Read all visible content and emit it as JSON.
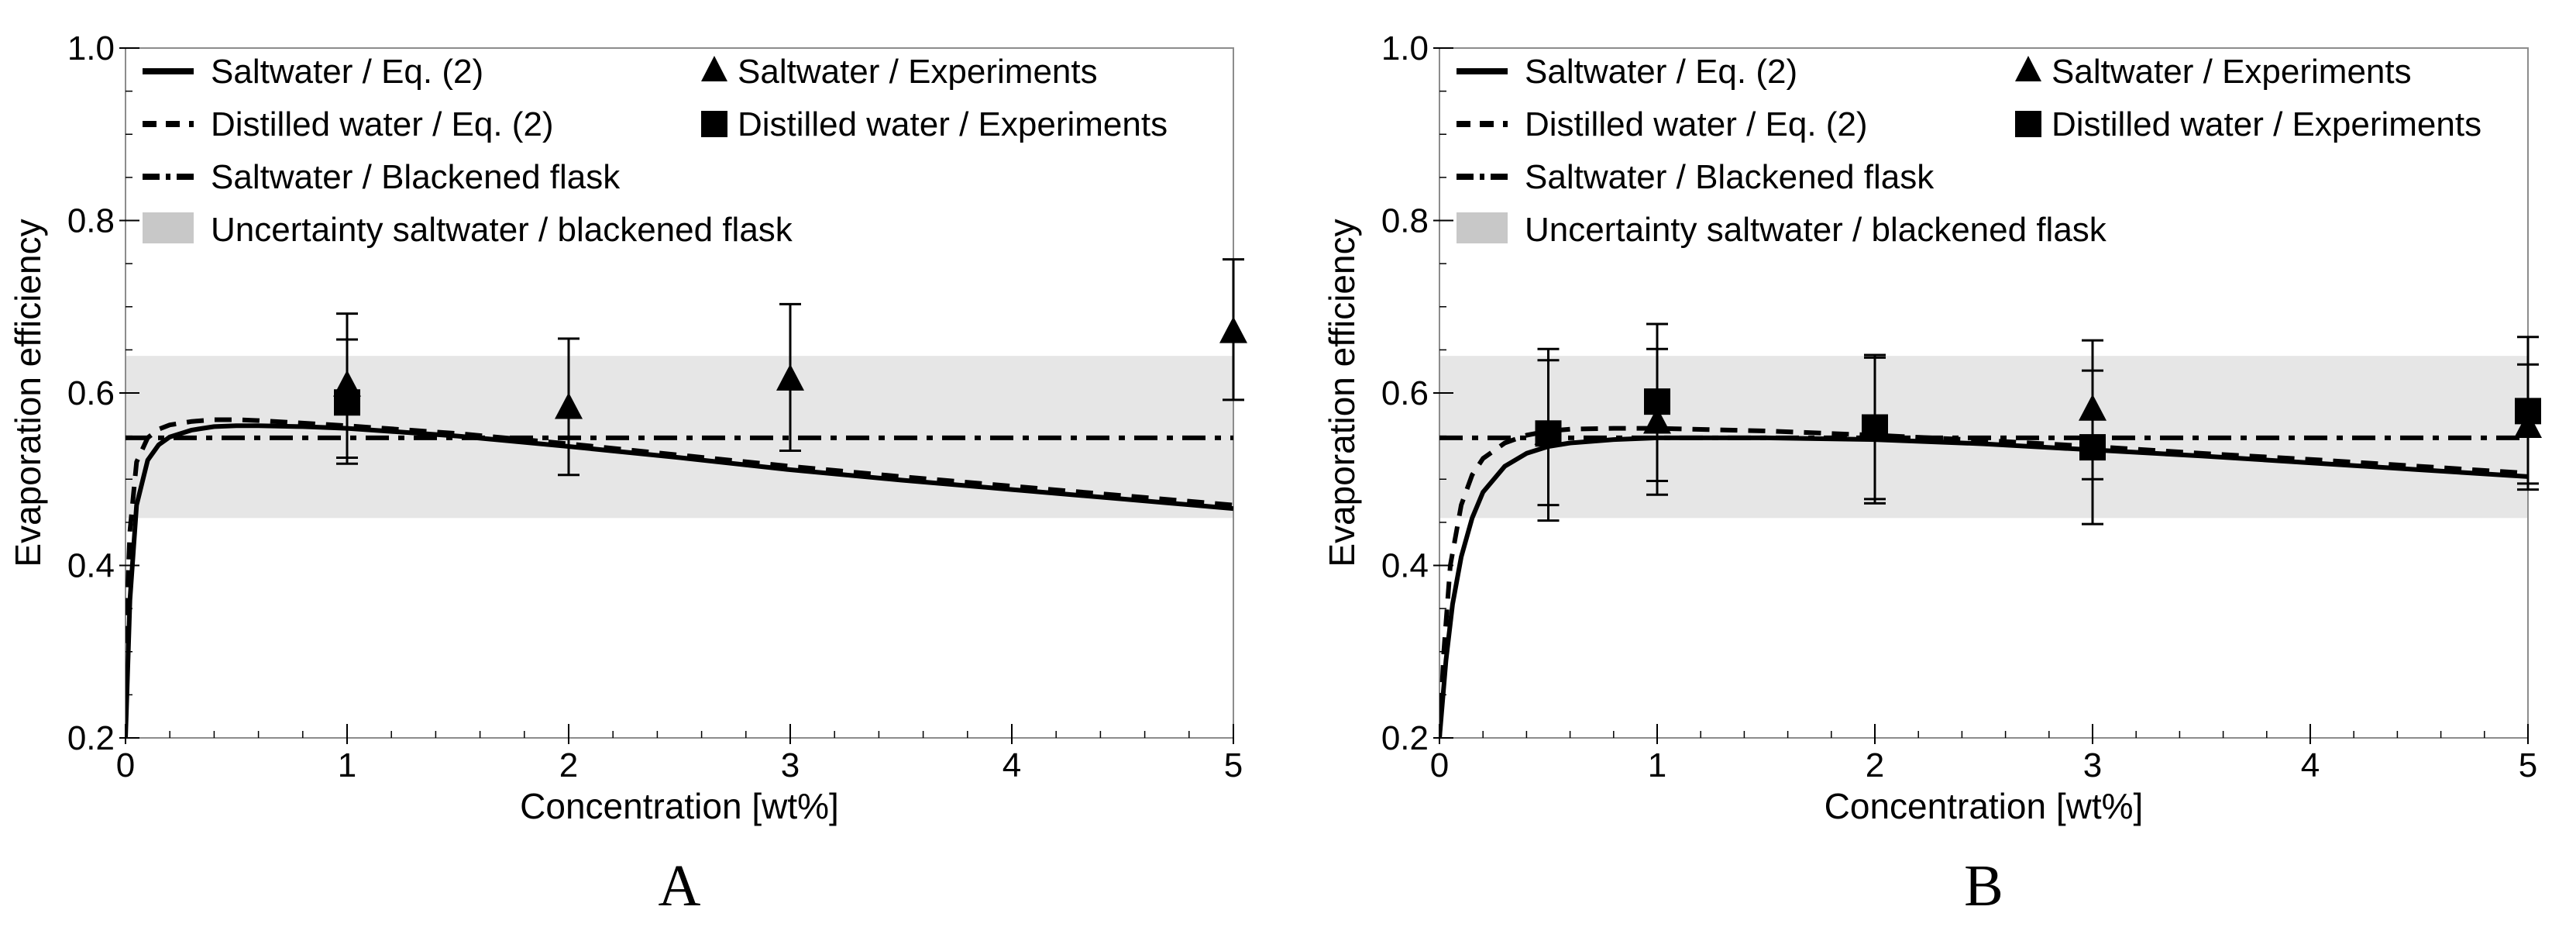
{
  "figure": {
    "panels": [
      "A",
      "B"
    ]
  },
  "colors": {
    "band": "#e6e6e6",
    "ink": "#000000",
    "frame": "#8c8c8c",
    "legend_band_swatch": "#c8c8c8"
  },
  "chart_data": [
    {
      "type": "line",
      "panel_letter": "A",
      "xlabel": "Concentration [wt%]",
      "ylabel": "Evaporation efficiency",
      "xlim": [
        0,
        5
      ],
      "ylim": [
        0.2,
        1.0
      ],
      "xticks": [
        0,
        1,
        2,
        3,
        4,
        5
      ],
      "yticks": [
        0.2,
        0.4,
        0.6,
        0.8,
        1.0
      ],
      "xtick_labels": [
        "0",
        "1",
        "2",
        "3",
        "4",
        "5"
      ],
      "ytick_labels": [
        "0.2",
        "0.4",
        "0.6",
        "0.8",
        "1.0"
      ],
      "legend": {
        "placement": "top",
        "entries": [
          {
            "label": "Saltwater / Eq. (2)",
            "marker": "solid"
          },
          {
            "label": "Distilled water / Eq. (2)",
            "marker": "dashed"
          },
          {
            "label": "Saltwater / Blackened flask",
            "marker": "dashdot"
          },
          {
            "label": "Uncertainty saltwater / blackened flask",
            "marker": "band"
          },
          {
            "label": "Saltwater / Experiments",
            "marker": "triangle"
          },
          {
            "label": "Distilled water / Experiments",
            "marker": "square"
          }
        ]
      },
      "band": {
        "ymin": 0.455,
        "ymax": 0.643
      },
      "series": [
        {
          "name": "Saltwater / Eq. (2)",
          "style": "solid",
          "x": [
            0.0,
            0.02,
            0.05,
            0.1,
            0.15,
            0.2,
            0.3,
            0.4,
            0.5,
            0.6,
            0.8,
            1.0,
            1.5,
            2.0,
            2.5,
            3.0,
            3.5,
            4.0,
            4.5,
            5.0
          ],
          "y": [
            0.2,
            0.36,
            0.47,
            0.522,
            0.54,
            0.549,
            0.557,
            0.561,
            0.562,
            0.562,
            0.561,
            0.559,
            0.55,
            0.538,
            0.525,
            0.511,
            0.499,
            0.488,
            0.477,
            0.466
          ]
        },
        {
          "name": "Distilled water / Eq. (2)",
          "style": "dashed",
          "x": [
            0.0,
            0.02,
            0.05,
            0.1,
            0.15,
            0.2,
            0.3,
            0.4,
            0.5,
            0.6,
            0.8,
            1.0,
            1.5,
            2.0,
            2.5,
            3.0,
            3.5,
            4.0,
            4.5,
            5.0
          ],
          "y": [
            0.31,
            0.44,
            0.52,
            0.548,
            0.558,
            0.563,
            0.567,
            0.569,
            0.569,
            0.568,
            0.565,
            0.562,
            0.553,
            0.541,
            0.528,
            0.515,
            0.503,
            0.492,
            0.481,
            0.47
          ]
        },
        {
          "name": "Saltwater / Blackened flask",
          "style": "dashdot",
          "x": [
            0.0,
            5.0
          ],
          "y": [
            0.548,
            0.548
          ]
        }
      ],
      "experiments": [
        {
          "name": "Saltwater / Experiments",
          "marker": "triangle",
          "points": [
            {
              "x": 1,
              "y": 0.608,
              "err_low": 0.525,
              "err_high": 0.692
            },
            {
              "x": 2,
              "y": 0.582,
              "err_low": 0.505,
              "err_high": 0.663
            },
            {
              "x": 3,
              "y": 0.615,
              "err_low": 0.533,
              "err_high": 0.703
            },
            {
              "x": 5,
              "y": 0.67,
              "err_low": 0.592,
              "err_high": 0.755
            }
          ]
        },
        {
          "name": "Distilled water / Experiments",
          "marker": "square",
          "points": [
            {
              "x": 1,
              "y": 0.589,
              "err_low": 0.518,
              "err_high": 0.662
            }
          ]
        }
      ]
    },
    {
      "type": "line",
      "panel_letter": "B",
      "xlabel": "Concentration [wt%]",
      "ylabel": "Evaporation efficiency",
      "xlim": [
        0,
        5
      ],
      "ylim": [
        0.2,
        1.0
      ],
      "xticks": [
        0,
        1,
        2,
        3,
        4,
        5
      ],
      "yticks": [
        0.2,
        0.4,
        0.6,
        0.8,
        1.0
      ],
      "xtick_labels": [
        "0",
        "1",
        "2",
        "3",
        "4",
        "5"
      ],
      "ytick_labels": [
        "0.2",
        "0.4",
        "0.6",
        "0.8",
        "1.0"
      ],
      "legend": {
        "placement": "top",
        "entries": [
          {
            "label": "Saltwater / Eq. (2)",
            "marker": "solid"
          },
          {
            "label": "Distilled water / Eq. (2)",
            "marker": "dashed"
          },
          {
            "label": "Saltwater / Blackened flask",
            "marker": "dashdot"
          },
          {
            "label": "Uncertainty saltwater / blackened flask",
            "marker": "band"
          },
          {
            "label": "Saltwater / Experiments",
            "marker": "triangle"
          },
          {
            "label": "Distilled water / Experiments",
            "marker": "square"
          }
        ]
      },
      "band": {
        "ymin": 0.455,
        "ymax": 0.643
      },
      "series": [
        {
          "name": "Saltwater / Eq. (2)",
          "style": "solid",
          "x": [
            0.0,
            0.03,
            0.06,
            0.1,
            0.15,
            0.2,
            0.3,
            0.4,
            0.5,
            0.6,
            0.8,
            1.0,
            1.5,
            2.0,
            2.5,
            3.0,
            3.5,
            4.0,
            4.5,
            5.0
          ],
          "y": [
            0.2,
            0.29,
            0.355,
            0.41,
            0.455,
            0.485,
            0.515,
            0.53,
            0.538,
            0.542,
            0.546,
            0.548,
            0.548,
            0.546,
            0.541,
            0.534,
            0.527,
            0.519,
            0.511,
            0.503
          ]
        },
        {
          "name": "Distilled water / Eq. (2)",
          "style": "dashed",
          "x": [
            0.0,
            0.02,
            0.05,
            0.1,
            0.15,
            0.2,
            0.3,
            0.4,
            0.5,
            0.6,
            0.8,
            1.0,
            1.5,
            2.0,
            2.5,
            3.0,
            3.5,
            4.0,
            4.5,
            5.0
          ],
          "y": [
            0.2,
            0.3,
            0.4,
            0.47,
            0.505,
            0.524,
            0.542,
            0.551,
            0.556,
            0.558,
            0.559,
            0.559,
            0.556,
            0.551,
            0.545,
            0.538,
            0.53,
            0.523,
            0.515,
            0.507
          ]
        },
        {
          "name": "Saltwater / Blackened flask",
          "style": "dashdot",
          "x": [
            0.0,
            5.0
          ],
          "y": [
            0.548,
            0.548
          ]
        }
      ],
      "experiments": [
        {
          "name": "Saltwater / Experiments",
          "marker": "triangle",
          "points": [
            {
              "x": 0.5,
              "y": 0.552,
              "err_low": 0.452,
              "err_high": 0.651
            },
            {
              "x": 1,
              "y": 0.565,
              "err_low": 0.482,
              "err_high": 0.651
            },
            {
              "x": 2,
              "y": 0.558,
              "err_low": 0.472,
              "err_high": 0.644
            },
            {
              "x": 3,
              "y": 0.58,
              "err_low": 0.5,
              "err_high": 0.661
            },
            {
              "x": 5,
              "y": 0.56,
              "err_low": 0.488,
              "err_high": 0.633
            }
          ]
        },
        {
          "name": "Distilled water / Experiments",
          "marker": "square",
          "points": [
            {
              "x": 0.5,
              "y": 0.553,
              "err_low": 0.47,
              "err_high": 0.638
            },
            {
              "x": 1,
              "y": 0.59,
              "err_low": 0.498,
              "err_high": 0.68
            },
            {
              "x": 2,
              "y": 0.56,
              "err_low": 0.477,
              "err_high": 0.641
            },
            {
              "x": 3,
              "y": 0.537,
              "err_low": 0.448,
              "err_high": 0.626
            },
            {
              "x": 5,
              "y": 0.579,
              "err_low": 0.495,
              "err_high": 0.665
            }
          ]
        }
      ]
    }
  ]
}
